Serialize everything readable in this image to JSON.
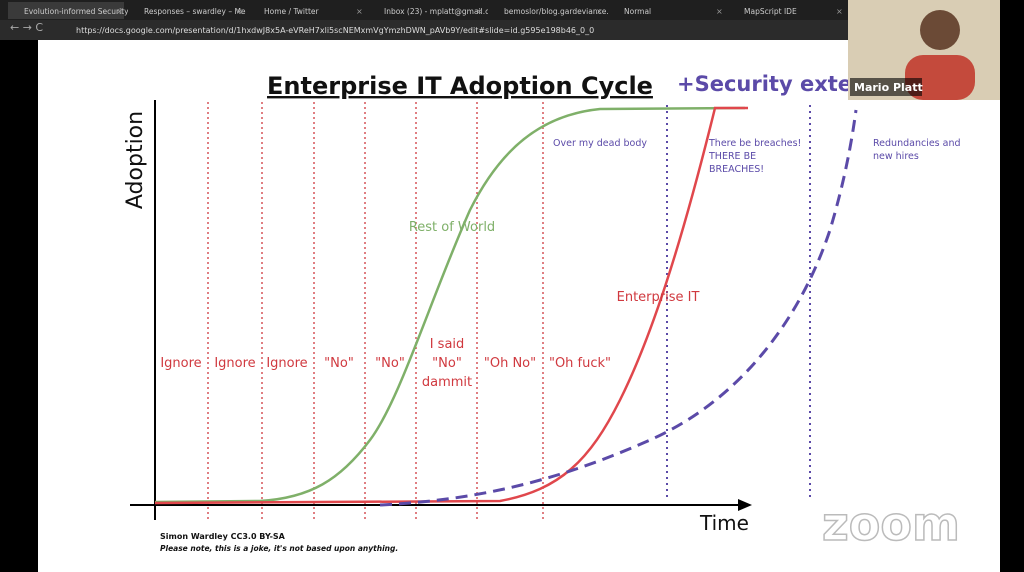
{
  "browser": {
    "tabs": [
      "Evolution-informed Security",
      "Responses – swardley – Me",
      "Home / Twitter",
      "Inbox (23) - mplatt@gmail.c",
      "bemoslor/blog.gardeviance.",
      "Normal",
      "MapScript IDE"
    ],
    "url": "https://docs.google.com/presentation/d/1hxdwJ8x5A-eVReH7xli5scNEMxmVgYmzhDWN_pAVb9Y/edit#slide=id.g595e198b46_0_0"
  },
  "slide": {
    "title": "Enterprise IT Adoption Cycle",
    "subtitle": "+Security exter",
    "y_label": "Adoption",
    "x_label": "Time",
    "stages": [
      [
        "Ignore"
      ],
      [
        "Ignore"
      ],
      [
        "Ignore"
      ],
      [
        "\"No\""
      ],
      [
        "\"No\""
      ],
      [
        "I said",
        "\"No\"",
        "dammit"
      ],
      [
        "\"Oh No\""
      ],
      [
        "\"Oh fuck\""
      ]
    ],
    "curve_labels": [
      "Rest of World",
      "Enterprise IT"
    ],
    "security_notes": [
      [
        "Over my dead body"
      ],
      [
        "There be breaches!",
        "THERE BE",
        "BREACHES!"
      ],
      [
        "Redundancies and",
        "new hires"
      ]
    ],
    "credit": "Simon Wardley CC3.0 BY-SA",
    "note": "Please note, this is a joke, it's not based upon anything."
  },
  "participant": "Mario Platt",
  "watermark": "zoom"
}
